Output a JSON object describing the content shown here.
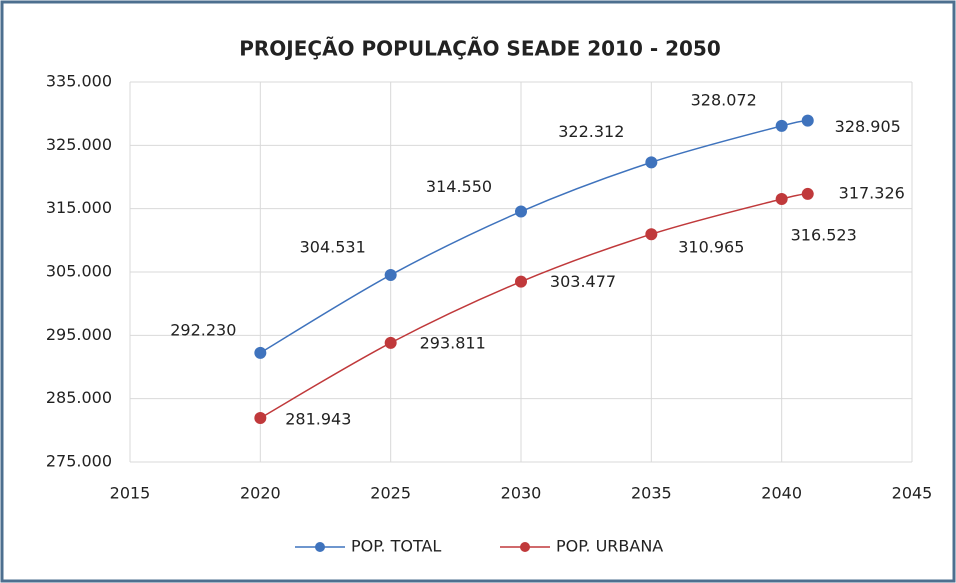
{
  "chart_data": {
    "type": "line",
    "title": "PROJEÇÃO POPULAÇÃO SEADE 2010 - 2050",
    "x": [
      2020,
      2025,
      2030,
      2035,
      2040,
      2041
    ],
    "series": [
      {
        "name": "POP. TOTAL",
        "color": "#3f73bd",
        "values": [
          292230,
          304531,
          314550,
          322312,
          328072,
          328905
        ],
        "value_labels": [
          "292.230",
          "304.531",
          "314.550",
          "322.312",
          "328.072",
          "328.905"
        ]
      },
      {
        "name": "POP. URBANA",
        "color": "#c0393b",
        "values": [
          281943,
          293811,
          303477,
          310965,
          316523,
          317326
        ],
        "value_labels": [
          "281.943",
          "293.811",
          "303.477",
          "310.965",
          "316.523",
          "317.326"
        ]
      }
    ],
    "xlim": [
      2015,
      2045
    ],
    "xticks": [
      2015,
      2020,
      2025,
      2030,
      2035,
      2040,
      2045
    ],
    "ylim": [
      275000,
      335000
    ],
    "yticks": [
      {
        "value": 275000,
        "label": "275.000"
      },
      {
        "value": 285000,
        "label": "285.000"
      },
      {
        "value": 295000,
        "label": "295.000"
      },
      {
        "value": 305000,
        "label": "305.000"
      },
      {
        "value": 315000,
        "label": "315.000"
      },
      {
        "value": 325000,
        "label": "325.000"
      },
      {
        "value": 335000,
        "label": "335.000"
      }
    ],
    "grid": true,
    "legend": "bottom"
  }
}
